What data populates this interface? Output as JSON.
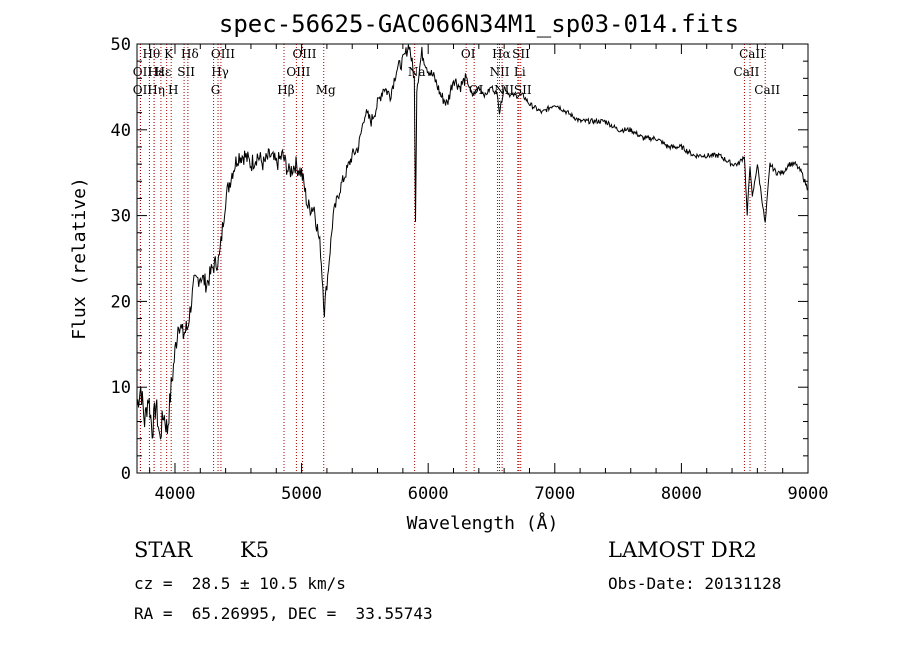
{
  "chart_data": {
    "type": "line",
    "title": "spec-56625-GAC066N34M1_sp03-014.fits",
    "xlabel": "Wavelength (Å)",
    "ylabel": "Flux (relative)",
    "xlim": [
      3700,
      9000
    ],
    "ylim": [
      0,
      50
    ],
    "xticks": [
      4000,
      5000,
      6000,
      7000,
      8000,
      9000
    ],
    "yticks": [
      0,
      10,
      20,
      30,
      40,
      50
    ],
    "grid": false,
    "line_color": "#000000",
    "marker_color": "#aa0000",
    "series": [
      {
        "x": [
          3700,
          3730,
          3760,
          3790,
          3820,
          3850,
          3880,
          3910,
          3940,
          3970,
          4000,
          4030,
          4060,
          4100,
          4150,
          4200,
          4250,
          4300,
          4350,
          4400,
          4450,
          4500,
          4550,
          4600,
          4650,
          4700,
          4750,
          4800,
          4850,
          4900,
          4950,
          5000,
          5050,
          5100,
          5150,
          5180,
          5200,
          5250,
          5300,
          5350,
          5400,
          5450,
          5500,
          5550,
          5600,
          5650,
          5700,
          5750,
          5800,
          5850,
          5890,
          5900,
          5910,
          5950,
          6000,
          6050,
          6100,
          6150,
          6200,
          6250,
          6300,
          6350,
          6400,
          6450,
          6500,
          6550,
          6563,
          6600,
          6650,
          6700,
          6750,
          6800,
          6900,
          7000,
          7100,
          7200,
          7300,
          7400,
          7500,
          7600,
          7700,
          7800,
          7900,
          8000,
          8100,
          8200,
          8300,
          8400,
          8450,
          8498,
          8520,
          8542,
          8560,
          8600,
          8662,
          8700,
          8750,
          8800,
          8850,
          8900,
          8950,
          9000
        ],
        "y": [
          8,
          10,
          6,
          9,
          5,
          8,
          4,
          7,
          5,
          10,
          14,
          18,
          16,
          17,
          22,
          23,
          22,
          24,
          25,
          32,
          35,
          37,
          37,
          36,
          37,
          36,
          37,
          36,
          37,
          35,
          36,
          35,
          31,
          31,
          26,
          19,
          22,
          30,
          33,
          35,
          37,
          38,
          42,
          41,
          43,
          45,
          44,
          47,
          48,
          50,
          46,
          30,
          45,
          49,
          47,
          46,
          44,
          43,
          46,
          45,
          46,
          44,
          45,
          44,
          45,
          44,
          42,
          45,
          44,
          44,
          44,
          43,
          42,
          43,
          42,
          41,
          41,
          41,
          40,
          40,
          39,
          39,
          38,
          38,
          37,
          37,
          37,
          36,
          36,
          37,
          30,
          36,
          32,
          36,
          29,
          36,
          35,
          35,
          36,
          36,
          35,
          33
        ]
      }
    ],
    "line_markers": [
      {
        "label": "Hθ",
        "wavelength": 3798,
        "row": 0
      },
      {
        "label": "OII",
        "wavelength": 3727,
        "row": 1
      },
      {
        "label": "OII",
        "wavelength": 3727,
        "row": 2
      },
      {
        "label": "Hε",
        "wavelength": 3835,
        "row": 1
      },
      {
        "label": "Hη",
        "wavelength": 3835,
        "row": 2
      },
      {
        "label": "K",
        "wavelength": 3934,
        "row": 0
      },
      {
        "label": "Hε",
        "wavelength": 3889,
        "row": 1
      },
      {
        "label": "H",
        "wavelength": 3970,
        "row": 2
      },
      {
        "label": "Hδ",
        "wavelength": 4102,
        "row": 0
      },
      {
        "label": "SII",
        "wavelength": 4072,
        "row": 1
      },
      {
        "label": "OIII",
        "wavelength": 4363,
        "row": 0
      },
      {
        "label": "Hγ",
        "wavelength": 4340,
        "row": 1
      },
      {
        "label": "G",
        "wavelength": 4305,
        "row": 2
      },
      {
        "label": "Hβ",
        "wavelength": 4861,
        "row": 2
      },
      {
        "label": "OIII",
        "wavelength": 5007,
        "row": 0
      },
      {
        "label": "OIII",
        "wavelength": 4959,
        "row": 1
      },
      {
        "label": "Mg",
        "wavelength": 5175,
        "row": 2
      },
      {
        "label": "Na",
        "wavelength": 5893,
        "row": 1
      },
      {
        "label": "OI",
        "wavelength": 6300,
        "row": 0
      },
      {
        "label": "OI",
        "wavelength": 6363,
        "row": 2
      },
      {
        "label": "Hα",
        "wavelength": 6563,
        "row": 0
      },
      {
        "label": "NII",
        "wavelength": 6548,
        "row": 1
      },
      {
        "label": "NII",
        "wavelength": 6584,
        "row": 2
      },
      {
        "label": "SII",
        "wavelength": 6717,
        "row": 0
      },
      {
        "label": "Li",
        "wavelength": 6708,
        "row": 1
      },
      {
        "label": "SII",
        "wavelength": 6731,
        "row": 2
      },
      {
        "label": "CaII",
        "wavelength": 8542,
        "row": 0
      },
      {
        "label": "CaII",
        "wavelength": 8498,
        "row": 1
      },
      {
        "label": "CaII",
        "wavelength": 8662,
        "row": 2
      }
    ]
  },
  "info": {
    "object_class": "STAR",
    "subclass": "K5",
    "survey": "LAMOST DR2",
    "velocity": "cz =  28.5 ± 10.5 km/s",
    "obs_date": "Obs-Date: 20131128",
    "coords": "RA =  65.26995, DEC =  33.55743"
  }
}
